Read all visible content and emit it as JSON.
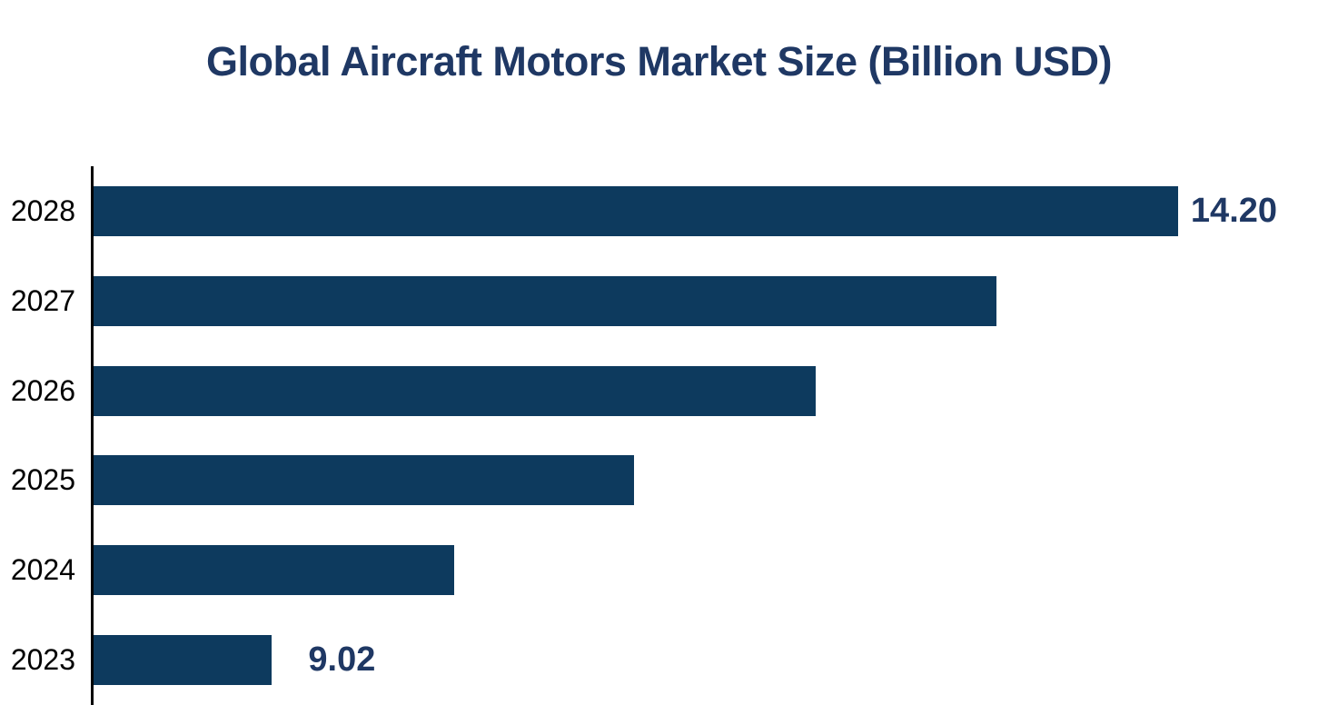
{
  "title": "Global Aircraft Motors Market Size (Billion USD)",
  "colors": {
    "background": "#ffffff",
    "bar": "#0d3a5e",
    "title_text": "#1f3864",
    "value_label_text": "#1f3864",
    "year_label_text": "#000000",
    "axis_line": "#000000"
  },
  "chart_data": {
    "type": "bar",
    "orientation": "horizontal",
    "title": "Global Aircraft Motors Market Size (Billion USD)",
    "categories": [
      "2028",
      "2027",
      "2026",
      "2025",
      "2024",
      "2023"
    ],
    "values": [
      14.2,
      13.16,
      12.13,
      11.09,
      10.06,
      9.02
    ],
    "value_labels": [
      "14.20",
      "",
      "",
      "",
      "",
      "9.02"
    ],
    "xlim": [
      8,
      15
    ],
    "xlabel": "",
    "ylabel": "",
    "grid": false,
    "legend": false
  }
}
